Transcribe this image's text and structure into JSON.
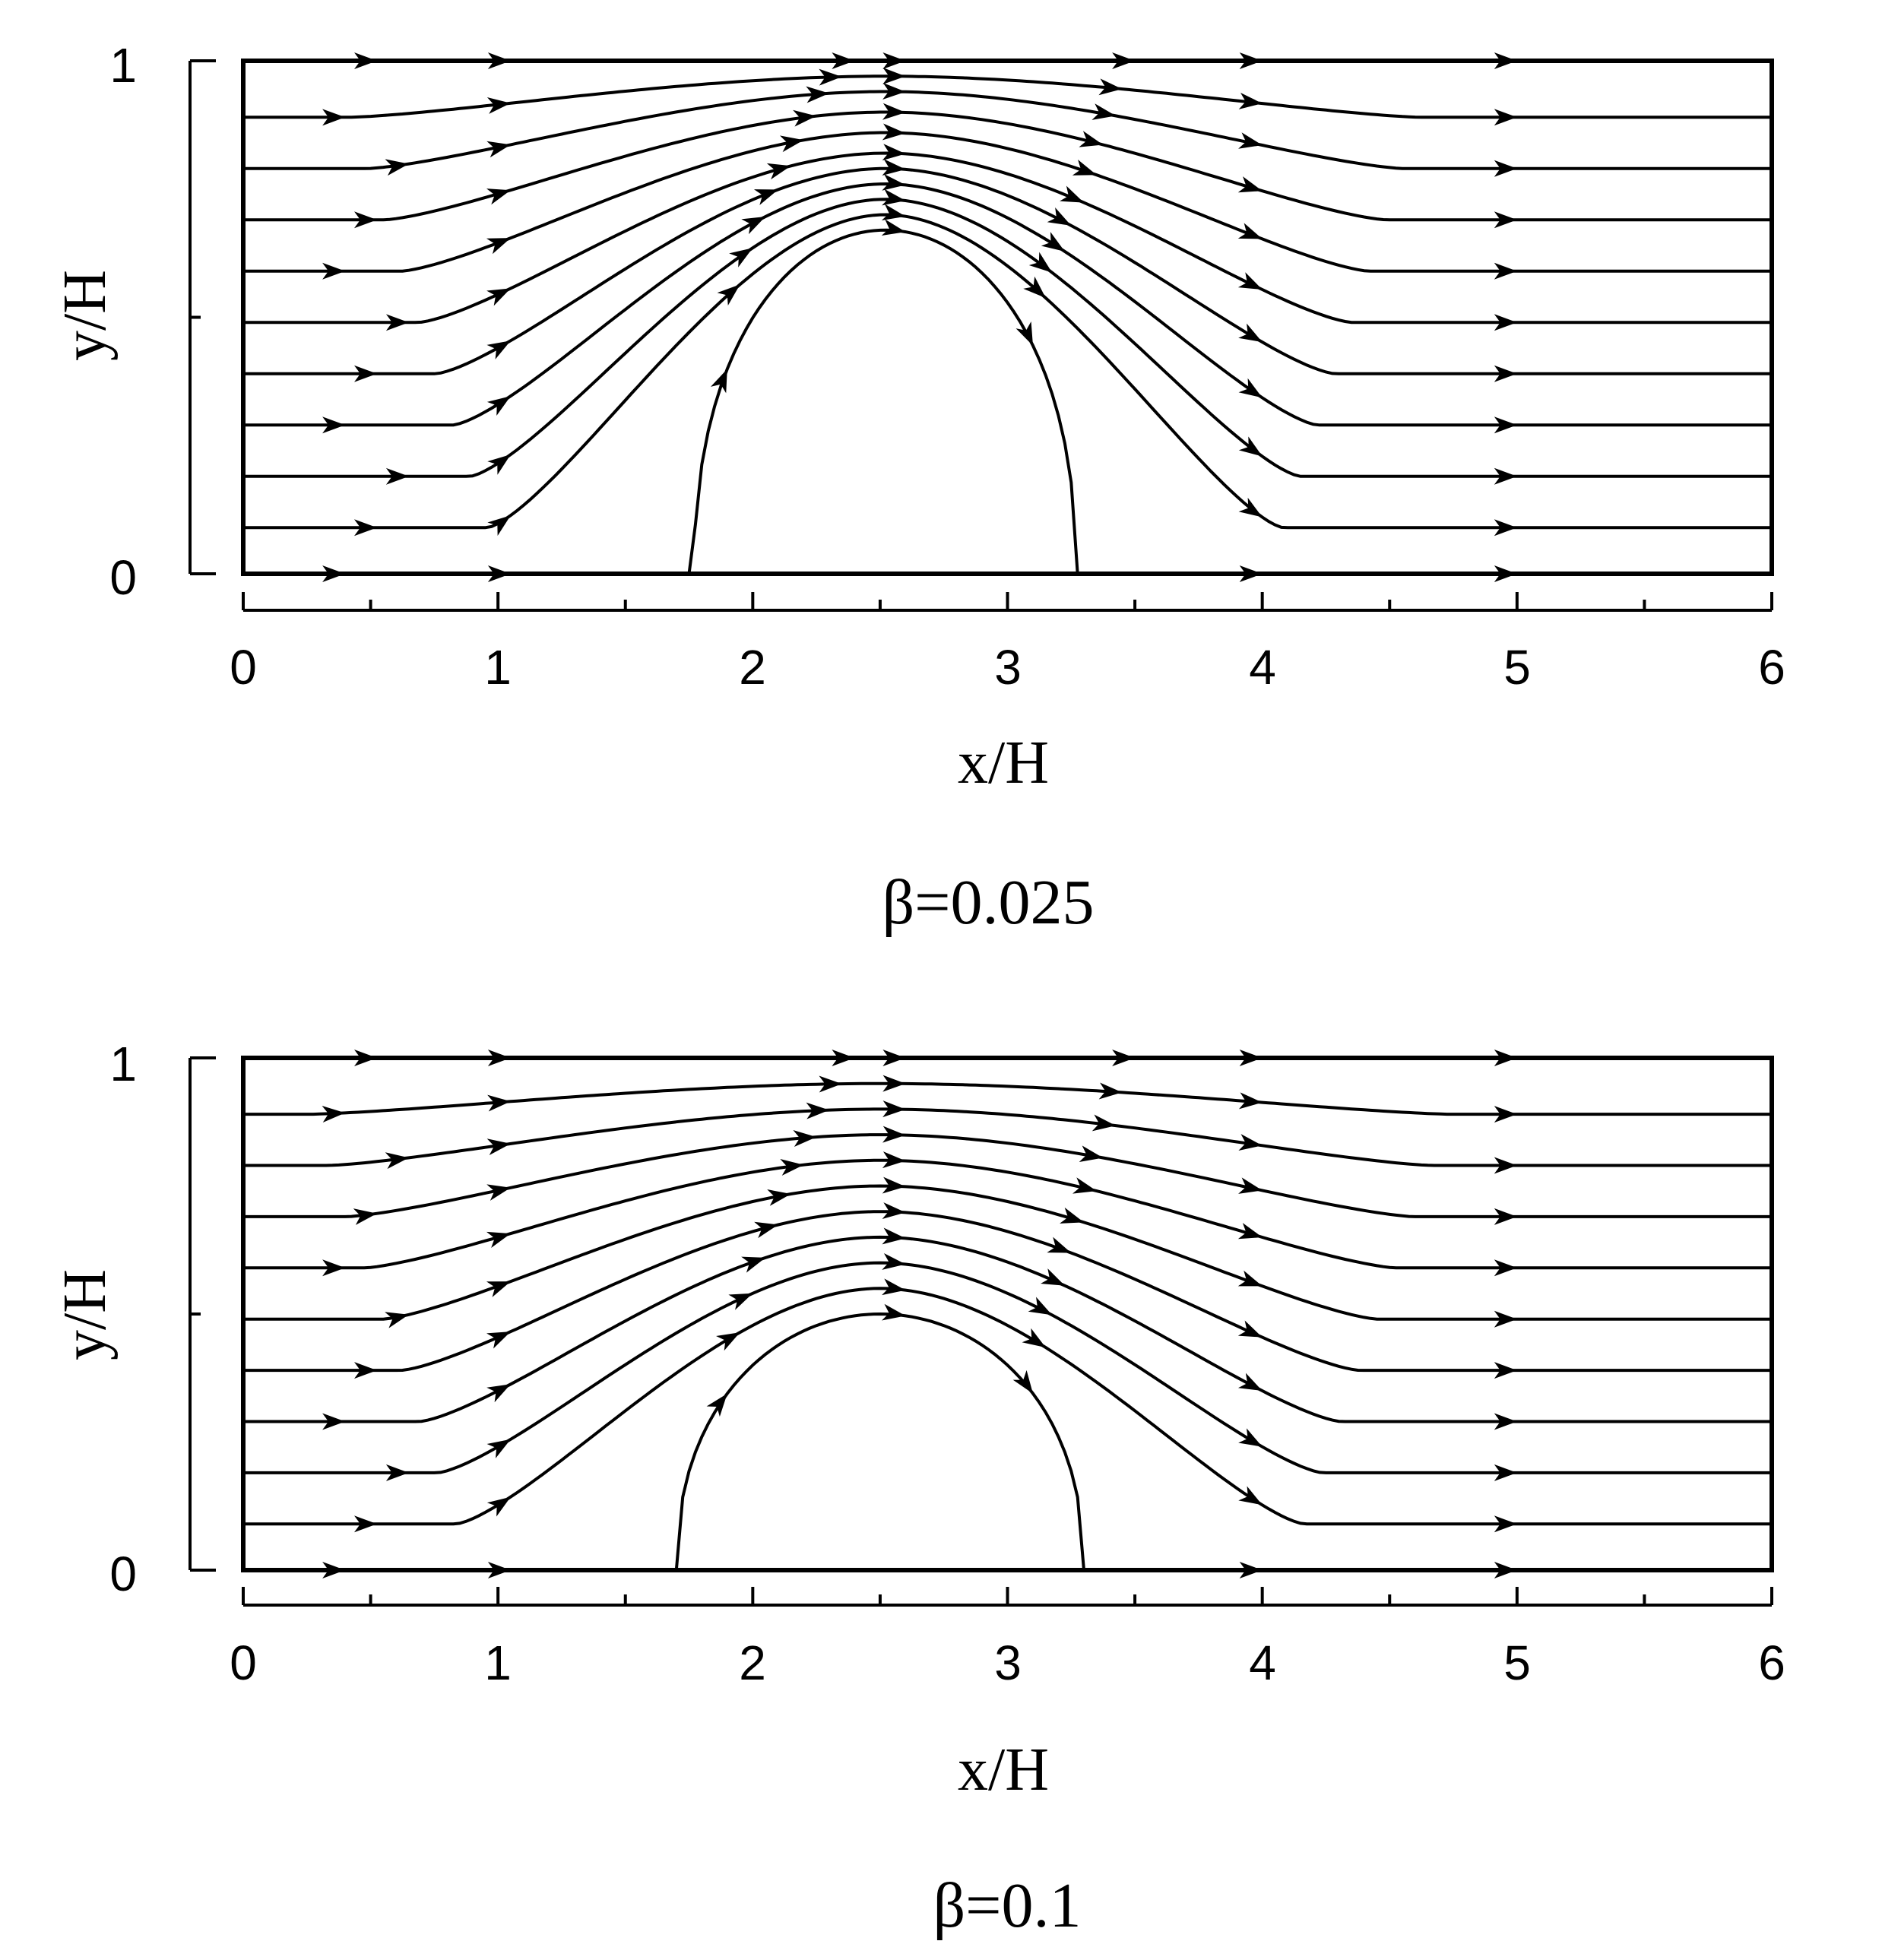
{
  "chart_data": [
    {
      "type": "streamline",
      "caption": "β=0.025",
      "xlabel": "x/H",
      "ylabel": "y/H",
      "xlim": [
        0,
        6
      ],
      "ylim": [
        0,
        1
      ],
      "x_ticks": [
        "0",
        "1",
        "2",
        "3",
        "4",
        "5",
        "6"
      ],
      "y_ticks": [
        "0",
        "1"
      ],
      "bump": {
        "x_start": 1.77,
        "x_end": 3.27,
        "peak_y": 0.67
      },
      "streamline_inlet_y": [
        0.0,
        0.09,
        0.19,
        0.29,
        0.39,
        0.49,
        0.59,
        0.69,
        0.79,
        0.89,
        1.0
      ],
      "streamline_peak_y": [
        0.67,
        0.7,
        0.73,
        0.76,
        0.79,
        0.82,
        0.86,
        0.9,
        0.94,
        0.97,
        1.0
      ],
      "color": "#000000"
    },
    {
      "type": "streamline",
      "caption": "β=0.1",
      "xlabel": "x/H",
      "ylabel": "y/H",
      "xlim": [
        0,
        6
      ],
      "ylim": [
        0,
        1
      ],
      "x_ticks": [
        "0",
        "1",
        "2",
        "3",
        "4",
        "5",
        "6"
      ],
      "y_ticks": [
        "0",
        "1"
      ],
      "bump": {
        "x_start": 1.7,
        "x_end": 3.3,
        "peak_y": 0.5
      },
      "streamline_inlet_y": [
        0.0,
        0.09,
        0.19,
        0.29,
        0.39,
        0.49,
        0.59,
        0.69,
        0.79,
        0.89,
        1.0
      ],
      "streamline_peak_y": [
        0.5,
        0.55,
        0.6,
        0.65,
        0.7,
        0.75,
        0.8,
        0.85,
        0.9,
        0.95,
        1.0
      ],
      "color": "#000000"
    }
  ]
}
